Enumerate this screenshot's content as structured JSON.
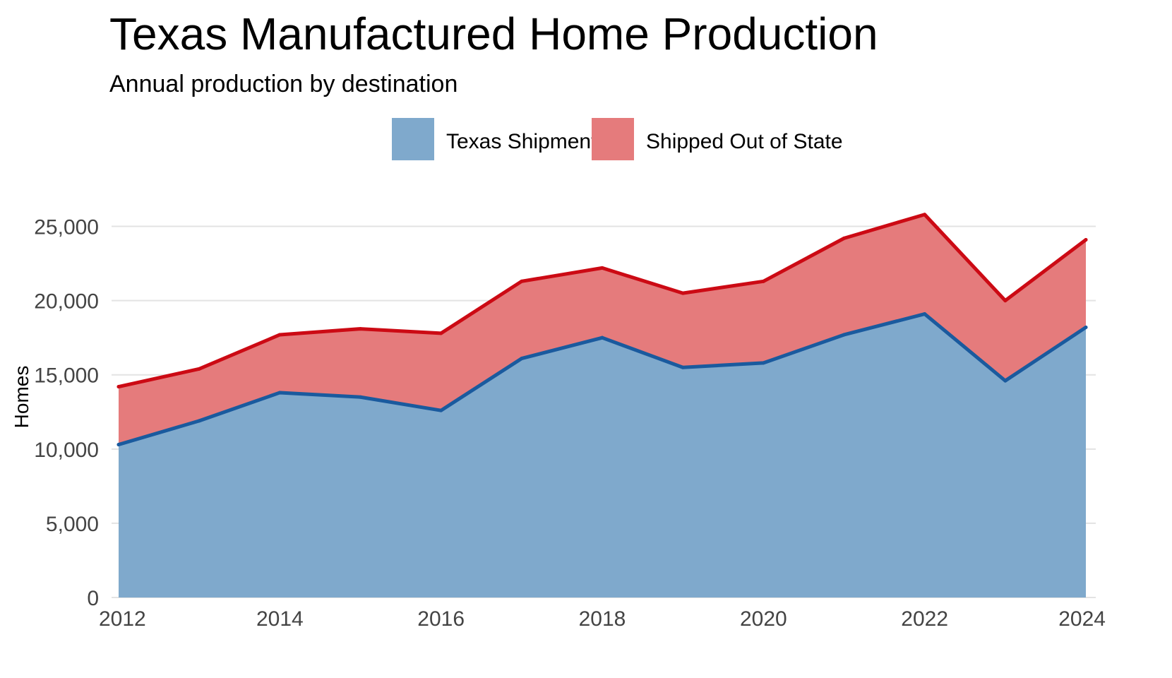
{
  "chart_data": {
    "type": "area",
    "stacked": true,
    "title": "Texas Manufactured Home Production",
    "subtitle": "Annual production by destination",
    "xlabel": "",
    "ylabel": "Homes",
    "x": [
      2012,
      2013,
      2014,
      2015,
      2016,
      2017,
      2018,
      2019,
      2020,
      2021,
      2022,
      2023,
      2024
    ],
    "x_ticks": [
      "2012",
      "2014",
      "2016",
      "2018",
      "2020",
      "2022",
      "2024"
    ],
    "y_ticks": [
      "0",
      "5,000",
      "10,000",
      "15,000",
      "20,000",
      "25,000"
    ],
    "xlim": [
      2012,
      2024
    ],
    "ylim": [
      0,
      27500
    ],
    "grid": "horizontal",
    "legend_position": "top",
    "series": [
      {
        "name": "Texas Shipments",
        "fill_color": "#7fa9cc",
        "line_color": "#1a5a9e",
        "values": [
          10300,
          11900,
          13800,
          13500,
          12600,
          16100,
          17500,
          15500,
          15800,
          17700,
          19100,
          14600,
          18200
        ]
      },
      {
        "name": "Shipped Out of State",
        "fill_color": "#e57b7c",
        "line_color": "#cc0a14",
        "values": [
          3900,
          3500,
          3900,
          4600,
          5200,
          5200,
          4700,
          5000,
          5500,
          6500,
          6700,
          5400,
          5900
        ],
        "totals": [
          14200,
          15400,
          17700,
          18100,
          17800,
          21300,
          22200,
          20500,
          21300,
          24200,
          25800,
          20000,
          24100
        ]
      }
    ]
  }
}
